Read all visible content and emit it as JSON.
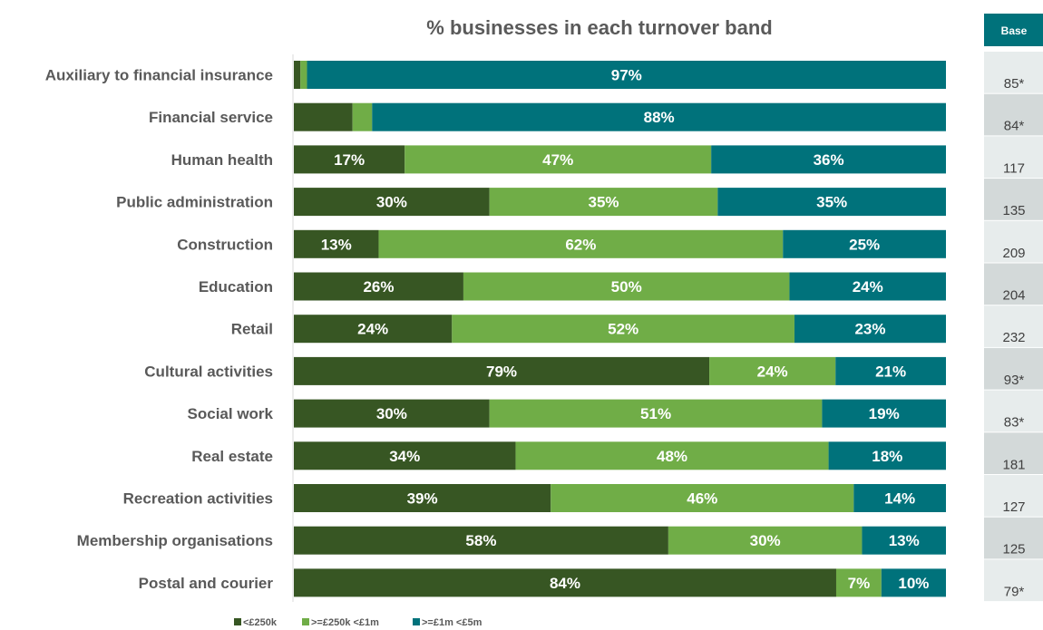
{
  "chart_data": {
    "type": "bar",
    "orientation": "horizontal",
    "stacked": true,
    "title": "% businesses in each turnover band",
    "categories": [
      "Auxiliary to financial insurance",
      "Financial service",
      "Human health",
      "Public administration",
      "Construction",
      "Education",
      "Retail",
      "Cultural activities",
      "Social work",
      "Real estate",
      "Recreation activities",
      "Membership organisations",
      "Postal and courier"
    ],
    "series": [
      {
        "name": "<£250k",
        "color": "#375623",
        "values": [
          1,
          9,
          17,
          30,
          13,
          26,
          24,
          79,
          30,
          34,
          39,
          58,
          84
        ],
        "labels": [
          "",
          "",
          "17%",
          "30%",
          "13%",
          "26%",
          "24%",
          "79%",
          "30%",
          "34%",
          "39%",
          "58%",
          "84%"
        ]
      },
      {
        "name": ">=£250k <£1m",
        "color": "#70ad47",
        "values": [
          1,
          3,
          47,
          35,
          62,
          50,
          52,
          24,
          51,
          48,
          46,
          30,
          7
        ],
        "labels": [
          "",
          "",
          "47%",
          "35%",
          "62%",
          "50%",
          "52%",
          "24%",
          "51%",
          "48%",
          "46%",
          "30%",
          "7%"
        ]
      },
      {
        "name": ">=£1m <£5m",
        "color": "#00727b",
        "values": [
          97,
          88,
          36,
          35,
          25,
          24,
          23,
          21,
          19,
          18,
          14,
          13,
          10
        ],
        "labels": [
          "97%",
          "88%",
          "36%",
          "35%",
          "25%",
          "24%",
          "23%",
          "21%",
          "19%",
          "18%",
          "14%",
          "13%",
          "10%"
        ]
      }
    ],
    "base": {
      "header": "Base",
      "header_color": "#00727b",
      "cell_colors": [
        "#e7ecec",
        "#d3d9d9"
      ],
      "values": [
        "85*",
        "84*",
        "117",
        "135",
        "209",
        "204",
        "232",
        "93*",
        "83*",
        "181",
        "127",
        "125",
        "79*"
      ]
    },
    "legend_position": "bottom-left",
    "grid": false
  }
}
